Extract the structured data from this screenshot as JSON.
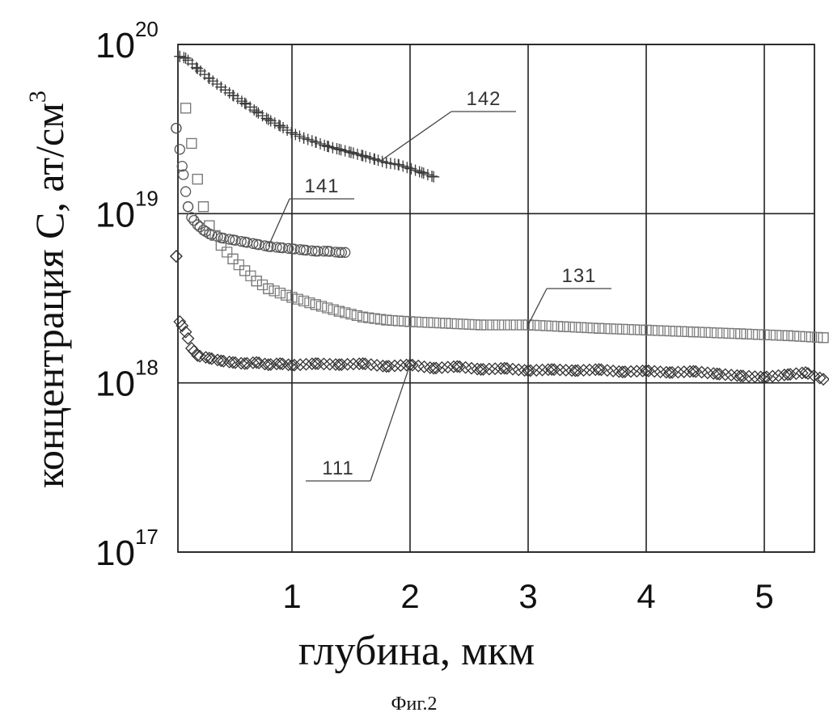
{
  "chart_data": {
    "type": "scatter",
    "title": "",
    "xlabel": "глубина, мкм",
    "ylabel": "концентрация С, ат/см",
    "ylabel_sup": "3",
    "xlim": [
      0,
      5.5
    ],
    "ylim": [
      1e+17,
      1e+20
    ],
    "yscale": "log",
    "grid": true,
    "x_ticks": [
      "1",
      "2",
      "3",
      "4",
      "5"
    ],
    "y_ticks": [
      {
        "base": "10",
        "exp": "17"
      },
      {
        "base": "10",
        "exp": "18"
      },
      {
        "base": "10",
        "exp": "19"
      },
      {
        "base": "10",
        "exp": "20"
      }
    ],
    "series": [
      {
        "name": "142",
        "marker": "plus",
        "x": [
          0.05,
          0.1,
          0.2,
          0.3,
          0.4,
          0.5,
          0.6,
          0.7,
          0.8,
          0.9,
          1.0,
          1.1,
          1.2,
          1.3,
          1.4,
          1.5,
          1.6,
          1.7,
          1.8,
          1.9,
          2.0,
          2.1,
          2.2
        ],
        "y": [
          8.5e+19,
          8.3e+19,
          7.2e+19,
          6.3e+19,
          5.6e+19,
          5e+19,
          4.5e+19,
          4e+19,
          3.6e+19,
          3.3e+19,
          3e+19,
          2.8e+19,
          2.65e+19,
          2.5e+19,
          2.4e+19,
          2.3e+19,
          2.2e+19,
          2.1e+19,
          2e+19,
          1.95e+19,
          1.85e+19,
          1.75e+19,
          1.65e+19
        ]
      },
      {
        "name": "141",
        "marker": "circle",
        "x": [
          0.02,
          0.05,
          0.08,
          0.1,
          0.12,
          0.15,
          0.2,
          0.25,
          0.3,
          0.4,
          0.5,
          0.6,
          0.7,
          0.8,
          0.9,
          1.0,
          1.1,
          1.2,
          1.3,
          1.4,
          1.45
        ],
        "y": [
          3.2e+19,
          2.4e+19,
          1.7e+19,
          1.35e+19,
          1.1e+19,
          9.5e+18,
          8.6e+18,
          8e+18,
          7.6e+18,
          7.2e+18,
          7e+18,
          6.8e+18,
          6.6e+18,
          6.4e+18,
          6.3e+18,
          6.2e+18,
          6.1e+18,
          6e+18,
          6e+18,
          5.9e+18,
          5.9e+18
        ]
      },
      {
        "name": "131",
        "marker": "square",
        "x": [
          0.1,
          0.15,
          0.2,
          0.25,
          0.3,
          0.4,
          0.5,
          0.6,
          0.7,
          0.8,
          1.0,
          1.2,
          1.4,
          1.6,
          1.8,
          2.0,
          2.3,
          2.6,
          3.0,
          3.3,
          3.6,
          4.0,
          4.4,
          4.8,
          5.2,
          5.5
        ],
        "y": [
          4.2e+19,
          2.6e+19,
          1.6e+19,
          1.1e+19,
          8.5e+18,
          6.5e+18,
          5.4e+18,
          4.6e+18,
          4e+18,
          3.6e+18,
          3.2e+18,
          2.9e+18,
          2.65e+18,
          2.45e+18,
          2.35e+18,
          2.3e+18,
          2.25e+18,
          2.2e+18,
          2.2e+18,
          2.15e+18,
          2.1e+18,
          2.05e+18,
          2e+18,
          1.95e+18,
          1.9e+18,
          1.85e+18
        ]
      },
      {
        "name": "111",
        "marker": "diamond",
        "x": [
          0.02,
          0.05,
          0.1,
          0.15,
          0.2,
          0.3,
          0.4,
          0.5,
          0.6,
          0.7,
          0.8,
          0.9,
          1.0,
          1.2,
          1.4,
          1.6,
          1.8,
          2.0,
          2.2,
          2.4,
          2.6,
          2.8,
          3.0,
          3.2,
          3.4,
          3.6,
          3.8,
          4.0,
          4.2,
          4.4,
          4.6,
          4.8,
          5.0,
          5.2,
          5.35,
          5.5
        ],
        "y": [
          5.6e+18,
          2.3e+18,
          2e+18,
          1.6e+18,
          1.45e+18,
          1.4e+18,
          1.35e+18,
          1.32e+18,
          1.3e+18,
          1.32e+18,
          1.28e+18,
          1.3e+18,
          1.27e+18,
          1.3e+18,
          1.28e+18,
          1.3e+18,
          1.25e+18,
          1.28e+18,
          1.22e+18,
          1.25e+18,
          1.2e+18,
          1.22e+18,
          1.18e+18,
          1.2e+18,
          1.18e+18,
          1.2e+18,
          1.16e+18,
          1.18e+18,
          1.15e+18,
          1.17e+18,
          1.13e+18,
          1.1e+18,
          1.08e+18,
          1.12e+18,
          1.15e+18,
          1.05e+18
        ]
      }
    ],
    "annotations": [
      {
        "text": "142",
        "series": "142",
        "at_x": 1.75
      },
      {
        "text": "141",
        "series": "141",
        "at_x": 0.8
      },
      {
        "text": "131",
        "series": "131",
        "at_x": 3.0
      },
      {
        "text": "111",
        "series": "111",
        "at_x": 2.0
      }
    ]
  },
  "caption": "Фиг.2"
}
